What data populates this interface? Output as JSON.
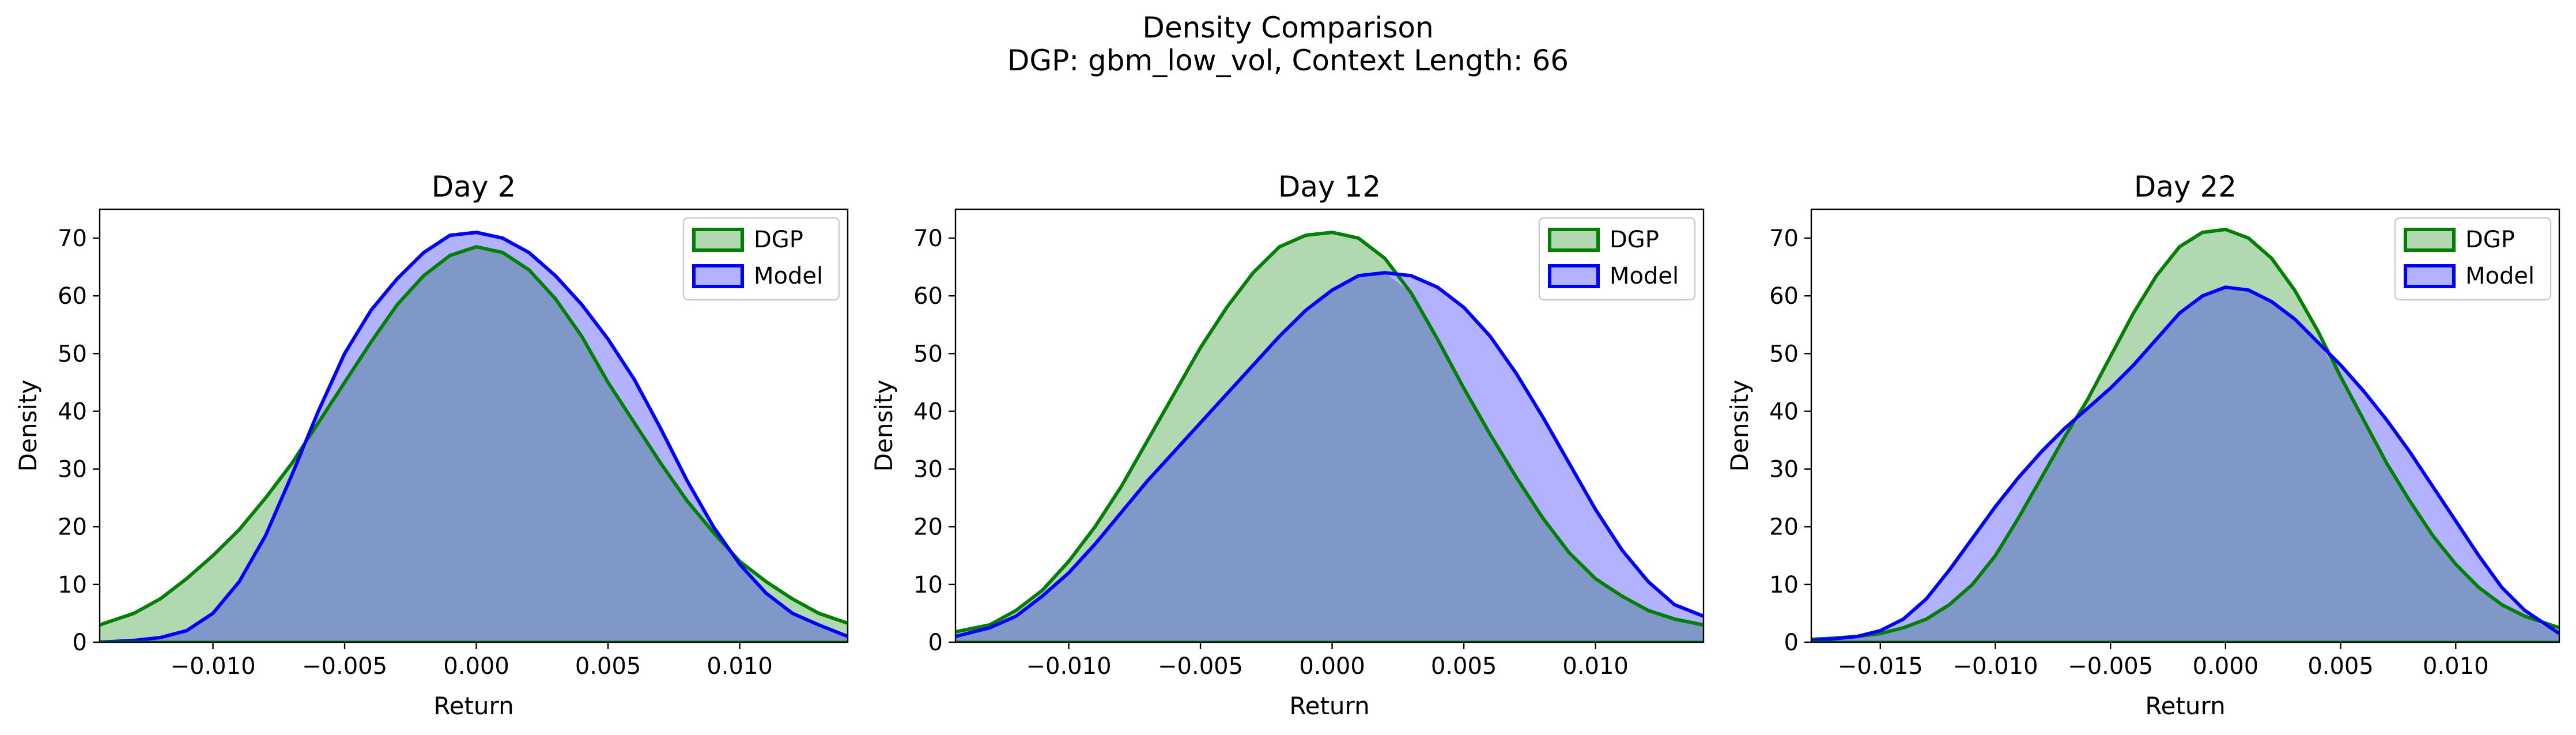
{
  "figure": {
    "title": "Density Comparison",
    "subtitle": "DGP: gbm_low_vol, Context Length: 66"
  },
  "colors": {
    "dgp_line": "#008000",
    "dgp_fill": "#b2d8b2",
    "model_line": "#0000ff",
    "model_fill": "#b2b2ff",
    "overlap_fill": "#7f98c8"
  },
  "chart_data": [
    {
      "type": "area",
      "title": "Day 2",
      "xlabel": "Return",
      "ylabel": "Density",
      "xlim": [
        -0.0143,
        0.0141
      ],
      "ylim": [
        0,
        75
      ],
      "xticks": [
        -0.01,
        -0.005,
        0.0,
        0.005,
        0.01
      ],
      "xtick_labels": [
        "−0.010",
        "−0.005",
        "0.000",
        "0.005",
        "0.010"
      ],
      "yticks": [
        0,
        10,
        20,
        30,
        40,
        50,
        60,
        70
      ],
      "ytick_labels": [
        "0",
        "10",
        "20",
        "30",
        "40",
        "50",
        "60",
        "70"
      ],
      "legend": "top-right",
      "series": [
        {
          "name": "DGP",
          "x": [
            -0.0143,
            -0.013,
            -0.012,
            -0.011,
            -0.01,
            -0.009,
            -0.008,
            -0.007,
            -0.006,
            -0.005,
            -0.004,
            -0.003,
            -0.002,
            -0.001,
            0.0,
            0.001,
            0.002,
            0.003,
            0.004,
            0.005,
            0.006,
            0.007,
            0.008,
            0.009,
            0.01,
            0.011,
            0.012,
            0.013,
            0.0141
          ],
          "y": [
            3,
            5,
            7.5,
            11,
            15,
            19.5,
            25,
            31,
            38,
            45,
            52,
            58.5,
            63.5,
            67,
            68.5,
            67.5,
            64.5,
            59.5,
            53,
            45,
            38,
            31,
            24.5,
            19,
            14,
            10.5,
            7.5,
            5,
            3.3
          ]
        },
        {
          "name": "Model",
          "x": [
            -0.0143,
            -0.013,
            -0.012,
            -0.011,
            -0.01,
            -0.009,
            -0.008,
            -0.007,
            -0.006,
            -0.005,
            -0.004,
            -0.003,
            -0.002,
            -0.001,
            0.0,
            0.001,
            0.002,
            0.003,
            0.004,
            0.005,
            0.006,
            0.007,
            0.008,
            0.009,
            0.01,
            0.011,
            0.012,
            0.013,
            0.0141
          ],
          "y": [
            0,
            0.3,
            0.8,
            2,
            5,
            10.5,
            18.5,
            29,
            40,
            50,
            57.5,
            63,
            67.5,
            70.5,
            71,
            70,
            67.5,
            63.5,
            58.5,
            52.5,
            45.5,
            37,
            28,
            20,
            13.5,
            8.5,
            5,
            3,
            1
          ]
        }
      ]
    },
    {
      "type": "area",
      "title": "Day 12",
      "xlabel": "Return",
      "ylabel": "Density",
      "xlim": [
        -0.0143,
        0.0141
      ],
      "ylim": [
        0,
        75
      ],
      "xticks": [
        -0.01,
        -0.005,
        0.0,
        0.005,
        0.01
      ],
      "xtick_labels": [
        "−0.010",
        "−0.005",
        "0.000",
        "0.005",
        "0.010"
      ],
      "yticks": [
        0,
        10,
        20,
        30,
        40,
        50,
        60,
        70
      ],
      "ytick_labels": [
        "0",
        "10",
        "20",
        "30",
        "40",
        "50",
        "60",
        "70"
      ],
      "legend": "top-right",
      "series": [
        {
          "name": "DGP",
          "x": [
            -0.0143,
            -0.013,
            -0.012,
            -0.011,
            -0.01,
            -0.009,
            -0.008,
            -0.007,
            -0.006,
            -0.005,
            -0.004,
            -0.003,
            -0.002,
            -0.001,
            0.0,
            0.001,
            0.002,
            0.003,
            0.004,
            0.005,
            0.006,
            0.007,
            0.008,
            0.009,
            0.01,
            0.011,
            0.012,
            0.013,
            0.0141
          ],
          "y": [
            1.8,
            3,
            5.5,
            9,
            14,
            20,
            27,
            35,
            43,
            51,
            58,
            64,
            68.5,
            70.5,
            71,
            70,
            66.5,
            60.5,
            52.5,
            44,
            36,
            28.5,
            21.5,
            15.5,
            11,
            8,
            5.5,
            4,
            3
          ]
        },
        {
          "name": "Model",
          "x": [
            -0.0143,
            -0.013,
            -0.012,
            -0.011,
            -0.01,
            -0.009,
            -0.008,
            -0.007,
            -0.006,
            -0.005,
            -0.004,
            -0.003,
            -0.002,
            -0.001,
            0.0,
            0.001,
            0.002,
            0.003,
            0.004,
            0.005,
            0.006,
            0.007,
            0.008,
            0.009,
            0.01,
            0.011,
            0.012,
            0.013,
            0.0141
          ],
          "y": [
            1,
            2.5,
            4.5,
            8,
            12,
            17,
            22.5,
            28,
            33,
            38,
            43,
            48,
            53,
            57.5,
            61,
            63.5,
            64,
            63.5,
            61.5,
            58,
            53,
            46.5,
            39,
            31,
            23,
            16,
            10.5,
            6.5,
            4.5
          ]
        }
      ]
    },
    {
      "type": "area",
      "title": "Day 22",
      "xlabel": "Return",
      "ylabel": "Density",
      "xlim": [
        -0.018,
        0.0145
      ],
      "ylim": [
        0,
        75
      ],
      "xticks": [
        -0.015,
        -0.01,
        -0.005,
        0.0,
        0.005,
        0.01
      ],
      "xtick_labels": [
        "−0.015",
        "−0.010",
        "−0.005",
        "0.000",
        "0.005",
        "0.010"
      ],
      "yticks": [
        0,
        10,
        20,
        30,
        40,
        50,
        60,
        70
      ],
      "ytick_labels": [
        "0",
        "10",
        "20",
        "30",
        "40",
        "50",
        "60",
        "70"
      ],
      "legend": "top-right",
      "series": [
        {
          "name": "DGP",
          "x": [
            -0.018,
            -0.017,
            -0.016,
            -0.015,
            -0.014,
            -0.013,
            -0.012,
            -0.011,
            -0.01,
            -0.009,
            -0.008,
            -0.007,
            -0.006,
            -0.005,
            -0.004,
            -0.003,
            -0.002,
            -0.001,
            0.0,
            0.001,
            0.002,
            0.003,
            0.004,
            0.005,
            0.006,
            0.007,
            0.008,
            0.009,
            0.01,
            0.011,
            0.012,
            0.013,
            0.0145
          ],
          "y": [
            0.5,
            0.7,
            1,
            1.5,
            2.5,
            4,
            6.5,
            10,
            15,
            21.5,
            28.5,
            35.5,
            42,
            49.5,
            57,
            63.5,
            68.5,
            71,
            71.5,
            70,
            66.5,
            61,
            54,
            46,
            38.5,
            31,
            24.5,
            18.5,
            13.5,
            9.5,
            6.5,
            4.5,
            2.5
          ]
        },
        {
          "name": "Model",
          "x": [
            -0.018,
            -0.017,
            -0.016,
            -0.015,
            -0.014,
            -0.013,
            -0.012,
            -0.011,
            -0.01,
            -0.009,
            -0.008,
            -0.007,
            -0.006,
            -0.005,
            -0.004,
            -0.003,
            -0.002,
            -0.001,
            0.0,
            0.001,
            0.002,
            0.003,
            0.004,
            0.005,
            0.006,
            0.007,
            0.008,
            0.009,
            0.01,
            0.011,
            0.012,
            0.013,
            0.0145
          ],
          "y": [
            0.3,
            0.6,
            1,
            2,
            4,
            7.5,
            12.5,
            18,
            23.5,
            28.5,
            33,
            37,
            40.5,
            44,
            48,
            52.5,
            57,
            60,
            61.5,
            61,
            59,
            56,
            52,
            48,
            43.5,
            38.5,
            33,
            27,
            21,
            15,
            9.5,
            5.5,
            1.5
          ]
        }
      ]
    }
  ]
}
